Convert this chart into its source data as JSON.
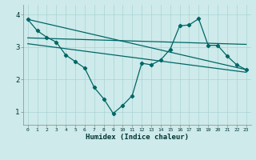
{
  "xlabel": "Humidex (Indice chaleur)",
  "background_color": "#ceeaea",
  "line_color": "#006666",
  "grid_color": "#aad4d4",
  "xlim": [
    -0.5,
    23.5
  ],
  "ylim": [
    0.6,
    4.3
  ],
  "yticks": [
    1,
    2,
    3,
    4
  ],
  "xticks": [
    0,
    1,
    2,
    3,
    4,
    5,
    6,
    7,
    8,
    9,
    10,
    11,
    12,
    13,
    14,
    15,
    16,
    17,
    18,
    19,
    20,
    21,
    22,
    23
  ],
  "line1_x": [
    0,
    1,
    2,
    3,
    4,
    5,
    6,
    7,
    8,
    9,
    10,
    11,
    12,
    13,
    14,
    15,
    16,
    17,
    18,
    19,
    20,
    21,
    22,
    23
  ],
  "line1_y": [
    3.85,
    3.5,
    3.3,
    3.15,
    2.75,
    2.55,
    2.35,
    1.75,
    1.4,
    0.95,
    1.2,
    1.5,
    2.5,
    2.45,
    2.6,
    2.93,
    3.65,
    3.68,
    3.87,
    3.05,
    3.05,
    2.72,
    2.45,
    2.3
  ],
  "line2_x": [
    0,
    23
  ],
  "line2_y": [
    3.85,
    2.3
  ],
  "line3_x": [
    0,
    23
  ],
  "line3_y": [
    3.28,
    3.08
  ],
  "line4_x": [
    0,
    23
  ],
  "line4_y": [
    3.1,
    2.22
  ]
}
